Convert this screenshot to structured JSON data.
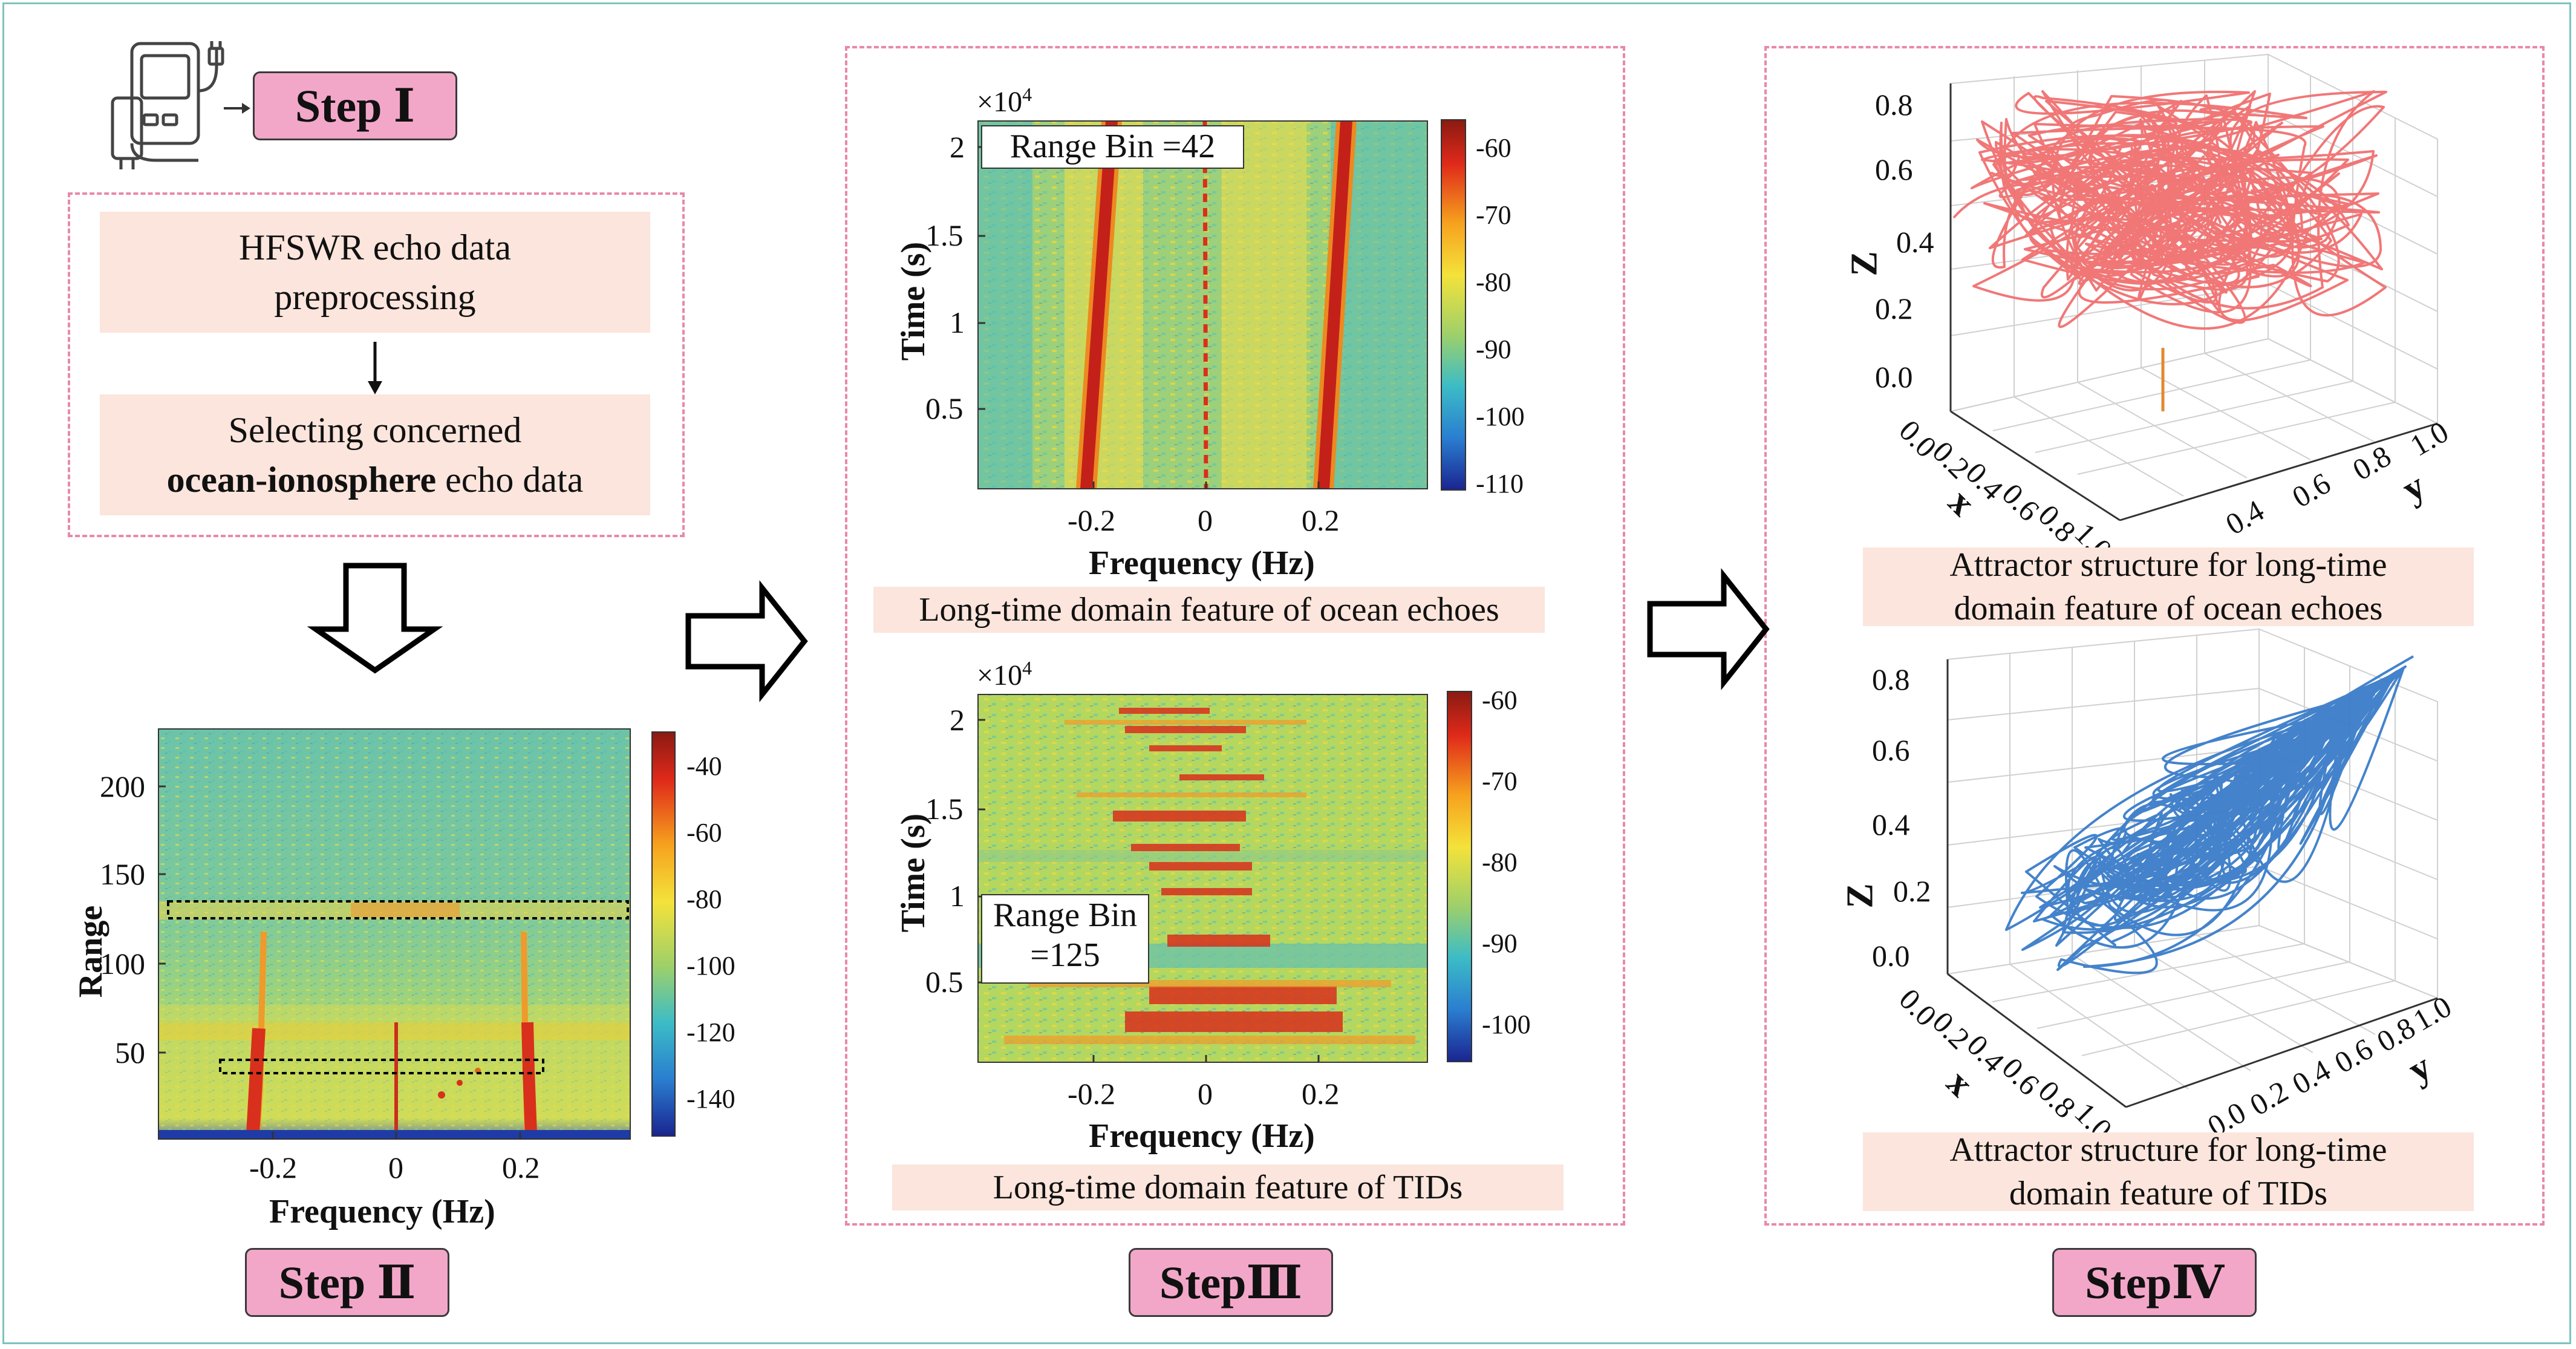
{
  "step1": {
    "label": "Step Ⅰ"
  },
  "step2": {
    "label": "Step Ⅱ"
  },
  "step3": {
    "label": "StepⅢ"
  },
  "step4": {
    "label": "StepⅣ"
  },
  "preprocess": {
    "box1_line1": "HFSWR echo data",
    "box1_line2": "preprocessing",
    "box2_line1": "Selecting concerned",
    "box2_bold": "ocean-ionosphere",
    "box2_rest": " echo data"
  },
  "rd_map": {
    "ylabel": "Range",
    "xlabel": "Frequency (Hz)",
    "yticks": [
      "200",
      "150",
      "100",
      "50"
    ],
    "xticks": [
      "-0.2",
      "0",
      "0.2"
    ],
    "colorbar": [
      "-40",
      "-60",
      "-80",
      "-100",
      "-120",
      "-140"
    ]
  },
  "spectrogram_ocean": {
    "exponent": "×10",
    "exponent_power": "4",
    "range_bin": "Range Bin =42",
    "ylabel": "Time (s)",
    "xlabel": "Frequency (Hz)",
    "yticks": [
      "2",
      "1.5",
      "1",
      "0.5"
    ],
    "xticks": [
      "-0.2",
      "0",
      "0.2"
    ],
    "colorbar": [
      "-60",
      "-70",
      "-80",
      "-90",
      "-100",
      "-110"
    ],
    "caption": "Long-time domain feature of ocean echoes"
  },
  "spectrogram_tid": {
    "exponent": "×10",
    "exponent_power": "4",
    "range_bin_line1": "Range Bin",
    "range_bin_line2": "=125",
    "ylabel": "Time (s)",
    "xlabel": "Frequency (Hz)",
    "yticks": [
      "2",
      "1.5",
      "1",
      "0.5"
    ],
    "xticks": [
      "-0.2",
      "0",
      "0.2"
    ],
    "colorbar": [
      "-60",
      "-70",
      "-80",
      "-90",
      "-100"
    ],
    "caption": "Long-time domain feature of TIDs"
  },
  "attractor_ocean": {
    "zlabel": "Z",
    "xlabel": "x",
    "ylabel": "y",
    "zticks": [
      "0.8",
      "0.6",
      "0.4",
      "0.2",
      "0.0"
    ],
    "xticks": [
      "0.0",
      "0.2",
      "0.4",
      "0.6",
      "0.8",
      "1.0"
    ],
    "yticks": [
      "1.0",
      "0.8",
      "0.6",
      "0.4"
    ],
    "caption_line1": "Attractor structure for long-time",
    "caption_line2": "domain feature of ocean echoes",
    "color": "#f07070"
  },
  "attractor_tid": {
    "zlabel": "Z",
    "xlabel": "x",
    "ylabel": "y",
    "zticks": [
      "0.8",
      "0.6",
      "0.4",
      "0.2",
      "0.0"
    ],
    "xticks": [
      "0.0",
      "0.2",
      "0.4",
      "0.6",
      "0.8",
      "1.0"
    ],
    "yticks": [
      "1.0",
      "0.8",
      "0.6",
      "0.4",
      "0.2",
      "0.0"
    ],
    "caption_line1": "Attractor structure for long-time",
    "caption_line2": "domain feature of TIDs",
    "color": "#3a7cc8"
  }
}
